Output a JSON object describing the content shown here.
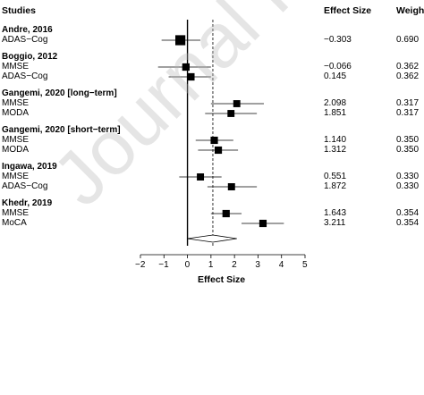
{
  "headers": {
    "studies": "Studies",
    "effect_size": "Effect Size",
    "weight": "Weight"
  },
  "watermark": "Journal Pre-proof",
  "chart_data": {
    "type": "forest",
    "xlabel": "Effect Size",
    "xlim": [
      -2,
      5
    ],
    "xticks": [
      -2,
      -1,
      0,
      1,
      2,
      3,
      4,
      5
    ],
    "null_line": 0,
    "pooled_effect": 1.08,
    "pooled_ci": [
      0,
      2.1
    ],
    "groups": [
      {
        "study": "Andre, 2016",
        "rows": [
          {
            "outcome": "ADAS−Cog",
            "es": -0.303,
            "es_label": "−0.303",
            "lo": -1.1,
            "hi": 0.55,
            "weight": "0.690",
            "w": 0.69
          }
        ]
      },
      {
        "study": "Boggio, 2012",
        "rows": [
          {
            "outcome": "MMSE",
            "es": -0.066,
            "es_label": "−0.066",
            "lo": -1.25,
            "hi": 1.0,
            "weight": "0.362",
            "w": 0.362
          },
          {
            "outcome": "ADAS−Cog",
            "es": 0.145,
            "es_label": "0.145",
            "lo": -0.8,
            "hi": 1.0,
            "weight": "0.362",
            "w": 0.362
          }
        ]
      },
      {
        "study": "Gangemi, 2020 [long−term]",
        "rows": [
          {
            "outcome": "MMSE",
            "es": 2.098,
            "es_label": "2.098",
            "lo": 1.0,
            "hi": 3.25,
            "weight": "0.317",
            "w": 0.317
          },
          {
            "outcome": "MODA",
            "es": 1.851,
            "es_label": "1.851",
            "lo": 0.75,
            "hi": 2.95,
            "weight": "0.317",
            "w": 0.317
          }
        ]
      },
      {
        "study": "Gangemi, 2020 [short−term]",
        "rows": [
          {
            "outcome": "MMSE",
            "es": 1.14,
            "es_label": "1.140",
            "lo": 0.35,
            "hi": 1.95,
            "weight": "0.350",
            "w": 0.35
          },
          {
            "outcome": "MODA",
            "es": 1.312,
            "es_label": "1.312",
            "lo": 0.45,
            "hi": 2.15,
            "weight": "0.350",
            "w": 0.35
          }
        ]
      },
      {
        "study": "Ingawa, 2019",
        "rows": [
          {
            "outcome": "MMSE",
            "es": 0.551,
            "es_label": "0.551",
            "lo": -0.35,
            "hi": 1.45,
            "weight": "0.330",
            "w": 0.33
          },
          {
            "outcome": "ADAS−Cog",
            "es": 1.872,
            "es_label": "1.872",
            "lo": 0.85,
            "hi": 2.95,
            "weight": "0.330",
            "w": 0.33
          }
        ]
      },
      {
        "study": "Khedr, 2019",
        "rows": [
          {
            "outcome": "MMSE",
            "es": 1.643,
            "es_label": "1.643",
            "lo": 1.0,
            "hi": 2.3,
            "weight": "0.354",
            "w": 0.354
          },
          {
            "outcome": "MoCA",
            "es": 3.211,
            "es_label": "3.211",
            "lo": 2.3,
            "hi": 4.1,
            "weight": "0.354",
            "w": 0.354
          }
        ]
      }
    ]
  }
}
